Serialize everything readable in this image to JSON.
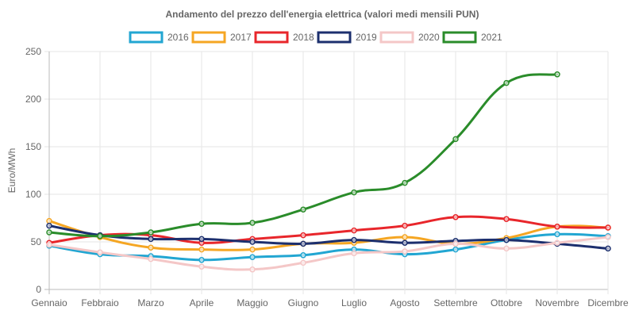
{
  "chart_data": {
    "type": "line",
    "title": "Andamento del prezzo dell'energia elettrica (valori medi mensili PUN)",
    "xlabel": "",
    "ylabel": "Euro/MWh",
    "ylim": [
      0,
      250
    ],
    "yticks": [
      0,
      50,
      100,
      150,
      200,
      250
    ],
    "grid": true,
    "legend_position": "top",
    "categories": [
      "Gennaio",
      "Febbraio",
      "Marzo",
      "Aprile",
      "Maggio",
      "Giugno",
      "Luglio",
      "Agosto",
      "Settembre",
      "Ottobre",
      "Novembre",
      "Dicembre"
    ],
    "series": [
      {
        "name": "2016",
        "color": "#22a6d2",
        "values": [
          46,
          37,
          35,
          31,
          34,
          36,
          42,
          37,
          42,
          52,
          58,
          56
        ]
      },
      {
        "name": "2017",
        "color": "#f5a623",
        "values": [
          72,
          55,
          44,
          42,
          42,
          48,
          49,
          55,
          48,
          54,
          66,
          65
        ]
      },
      {
        "name": "2018",
        "color": "#e8262b",
        "values": [
          49,
          57,
          57,
          49,
          53,
          57,
          62,
          67,
          76,
          74,
          66,
          65
        ]
      },
      {
        "name": "2019",
        "color": "#1c2f6e",
        "values": [
          67,
          57,
          53,
          53,
          50,
          48,
          52,
          49,
          51,
          52,
          48,
          43
        ]
      },
      {
        "name": "2020",
        "color": "#f4c7c7",
        "values": [
          47,
          39,
          32,
          24,
          21,
          28,
          38,
          40,
          48,
          43,
          49,
          55
        ]
      },
      {
        "name": "2021",
        "color": "#2a8c2a",
        "values": [
          60,
          56,
          60,
          69,
          70,
          84,
          102,
          112,
          158,
          217,
          226,
          null
        ]
      }
    ]
  }
}
